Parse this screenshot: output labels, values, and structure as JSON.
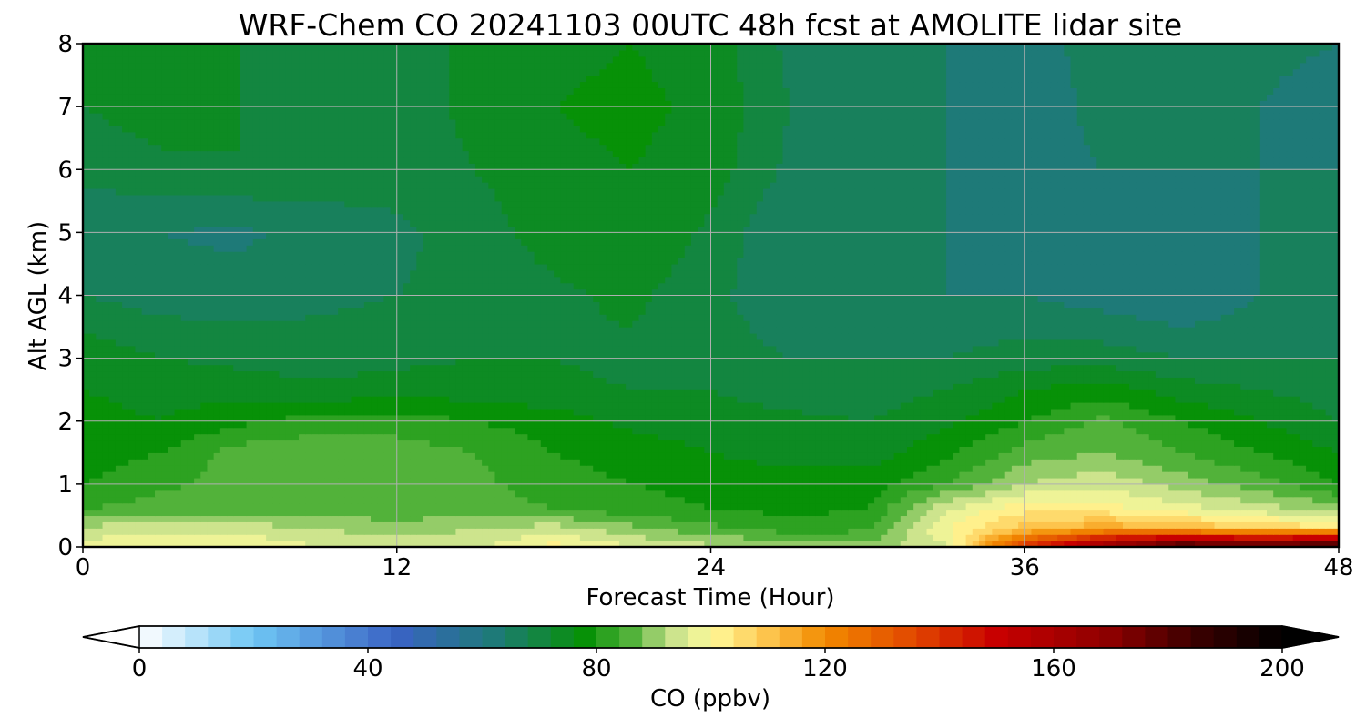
{
  "chart_data": {
    "type": "heatmap",
    "title": "WRF-Chem CO  20241103 00UTC 48h fcst at AMOLITE lidar site",
    "xlabel": "Forecast Time (Hour)",
    "ylabel": "Alt AGL (km)",
    "xlim": [
      0,
      48
    ],
    "ylim": [
      0,
      8
    ],
    "xticks": [
      0,
      12,
      24,
      36,
      48
    ],
    "yticks": [
      0,
      1,
      2,
      3,
      4,
      5,
      6,
      7,
      8
    ],
    "grid": true,
    "colorbar": {
      "label": "CO  (ppbv)",
      "range": [
        0,
        200
      ],
      "ticks": [
        0,
        40,
        80,
        120,
        160,
        200
      ],
      "extend": "both",
      "orientation": "horizontal",
      "stops": [
        {
          "value": 0,
          "color": "#ffffff"
        },
        {
          "value": 20,
          "color": "#6ec6f4"
        },
        {
          "value": 45,
          "color": "#3a63c4"
        },
        {
          "value": 62,
          "color": "#1e7a78"
        },
        {
          "value": 78,
          "color": "#079107"
        },
        {
          "value": 86,
          "color": "#52b23a"
        },
        {
          "value": 93,
          "color": "#c5e08a"
        },
        {
          "value": 100,
          "color": "#fffb9c"
        },
        {
          "value": 110,
          "color": "#fdc44c"
        },
        {
          "value": 120,
          "color": "#f28a00"
        },
        {
          "value": 135,
          "color": "#e24a00"
        },
        {
          "value": 150,
          "color": "#c80000"
        },
        {
          "value": 170,
          "color": "#8c0000"
        },
        {
          "value": 185,
          "color": "#3a0000"
        },
        {
          "value": 200,
          "color": "#000000"
        }
      ]
    },
    "x": [
      0,
      3,
      6,
      9,
      12,
      15,
      18,
      21,
      24,
      27,
      30,
      33,
      36,
      39,
      42,
      45,
      48
    ],
    "y": [
      0,
      0.3,
      0.6,
      1,
      1.5,
      2,
      2.5,
      3,
      4,
      5,
      6,
      7,
      8
    ],
    "z": [
      [
        98,
        100,
        100,
        96,
        94,
        95,
        102,
        96,
        93,
        91,
        90,
        95,
        140,
        170,
        190,
        185,
        195
      ],
      [
        93,
        95,
        94,
        92,
        90,
        92,
        94,
        89,
        85,
        82,
        83,
        100,
        110,
        115,
        112,
        108,
        105
      ],
      [
        84,
        86,
        86,
        86,
        85,
        86,
        84,
        82,
        80,
        79,
        80,
        96,
        103,
        102,
        98,
        94,
        90
      ],
      [
        80,
        83,
        86,
        87,
        86,
        85,
        82,
        80,
        78,
        77,
        78,
        84,
        92,
        95,
        90,
        86,
        80
      ],
      [
        78,
        80,
        86,
        87,
        86,
        84,
        80,
        78,
        76,
        75,
        74,
        79,
        86,
        88,
        84,
        80,
        76
      ],
      [
        77,
        76,
        79,
        82,
        82,
        80,
        78,
        75,
        74,
        73,
        72,
        75,
        80,
        85,
        80,
        76,
        72
      ],
      [
        76,
        75,
        74,
        73,
        74,
        74,
        73,
        72,
        72,
        70,
        70,
        72,
        76,
        78,
        74,
        72,
        70
      ],
      [
        75,
        72,
        71,
        70,
        71,
        72,
        72,
        71,
        70,
        68,
        68,
        68,
        70,
        70,
        68,
        68,
        68
      ],
      [
        68,
        66,
        66,
        67,
        68,
        69,
        71,
        73,
        69,
        65,
        64,
        64,
        64,
        62,
        60,
        64,
        64
      ],
      [
        65,
        64,
        63,
        66,
        67,
        70,
        74,
        76,
        71,
        64,
        64,
        64,
        63,
        63,
        62,
        64,
        64
      ],
      [
        69,
        71,
        72,
        70,
        70,
        72,
        75,
        76,
        74,
        67,
        65,
        64,
        63,
        64,
        64,
        64,
        64
      ],
      [
        72,
        74,
        72,
        71,
        70,
        73,
        76,
        77,
        75,
        68,
        66,
        64,
        62,
        65,
        64,
        64,
        62
      ],
      [
        73,
        74,
        72,
        71,
        70,
        73,
        75,
        76,
        74,
        67,
        66,
        64,
        63,
        65,
        64,
        65,
        64
      ]
    ]
  }
}
